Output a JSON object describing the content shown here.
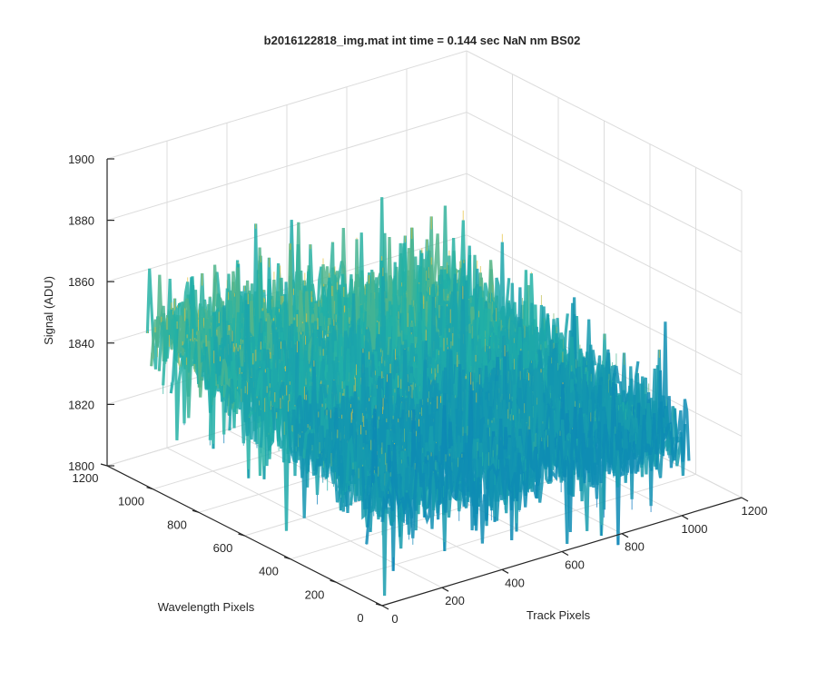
{
  "chart_data": {
    "type": "surface",
    "title": "b2016122818_img.mat int time = 0.144 sec  NaN nm BS02",
    "xlabel": "Track Pixels",
    "ylabel": "Wavelength Pixels",
    "zlabel": "Signal (ADU)",
    "xlim": [
      0,
      1200
    ],
    "ylim": [
      0,
      1200
    ],
    "zlim": [
      1800,
      1900
    ],
    "x_ticks": [
      "0",
      "200",
      "400",
      "600",
      "800",
      "1000",
      "1200"
    ],
    "y_ticks": [
      "0",
      "200",
      "400",
      "600",
      "800",
      "1000",
      "1200"
    ],
    "z_ticks": [
      "1800",
      "1820",
      "1840",
      "1860",
      "1880",
      "1900"
    ],
    "grid": true,
    "colormap": "parula",
    "data_extent": {
      "x": [
        0,
        1024
      ],
      "y": [
        0,
        1024
      ]
    },
    "surface_profile": {
      "wavelength_pixels": [
        0,
        256,
        512,
        768,
        1024
      ],
      "mean_signal_low_track": [
        1833,
        1838,
        1843,
        1847,
        1852
      ],
      "mean_signal_high_track": [
        1825,
        1827,
        1830,
        1832,
        1835
      ],
      "noise_amplitude": 12
    },
    "colors": {
      "low": "#0072bd",
      "mid": "#22b1a6",
      "high": "#e7c13a"
    }
  }
}
